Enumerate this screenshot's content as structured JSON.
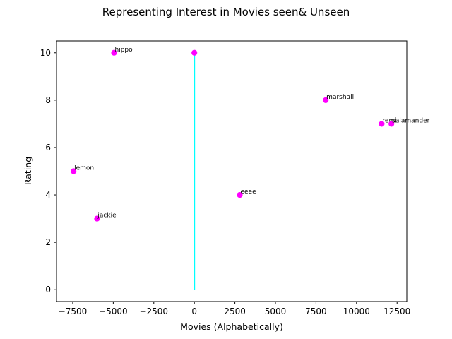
{
  "chart_data": {
    "type": "scatter",
    "title": "Representing Interest in Movies seen& Unseen",
    "xlabel": "Movies (Alphabetically)",
    "ylabel": "Rating",
    "xlim": [
      -8500,
      13100
    ],
    "ylim": [
      -0.5,
      10.5
    ],
    "xticks": [
      -7500,
      -5000,
      -2500,
      0,
      2500,
      5000,
      7500,
      10000,
      12500
    ],
    "yticks": [
      0,
      2,
      4,
      6,
      8,
      10
    ],
    "grid": false,
    "marker_color": "#ff00ff",
    "line_color": "#00ffff",
    "points": [
      {
        "label": "hippo",
        "x": -4950,
        "y": 10
      },
      {
        "label": "",
        "x": 0,
        "y": 10
      },
      {
        "label": "marshall",
        "x": 8100,
        "y": 8
      },
      {
        "label": "remi",
        "x": 11550,
        "y": 7
      },
      {
        "label": "salamander",
        "x": 12150,
        "y": 7
      },
      {
        "label": "lemon",
        "x": -7450,
        "y": 5
      },
      {
        "label": "eeee",
        "x": 2800,
        "y": 4
      },
      {
        "label": "jackie",
        "x": -6000,
        "y": 3
      }
    ],
    "vline": {
      "x": 0,
      "y_from": 0,
      "y_to": 10
    }
  }
}
